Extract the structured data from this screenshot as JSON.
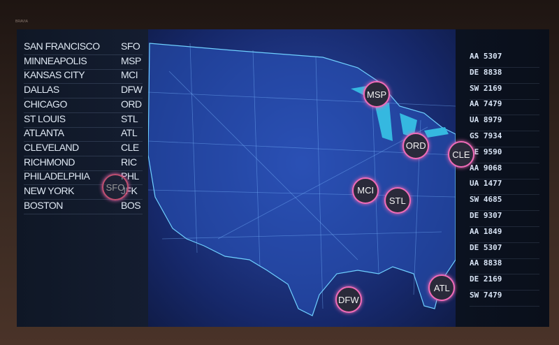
{
  "brand": "BRAVIA",
  "airports": [
    {
      "city": "SAN FRANCISCO",
      "code": "SFO"
    },
    {
      "city": "MINNEAPOLIS",
      "code": "MSP"
    },
    {
      "city": "KANSAS CITY",
      "code": "MCI"
    },
    {
      "city": "DALLAS",
      "code": "DFW"
    },
    {
      "city": "CHICAGO",
      "code": "ORD"
    },
    {
      "city": "ST LOUIS",
      "code": "STL"
    },
    {
      "city": "ATLANTA",
      "code": "ATL"
    },
    {
      "city": "CLEVELAND",
      "code": "CLE"
    },
    {
      "city": "RICHMOND",
      "code": "RIC"
    },
    {
      "city": "PHILADELPHIA",
      "code": "PHL"
    },
    {
      "city": "NEW YORK",
      "code": "JFK"
    },
    {
      "city": "BOSTON",
      "code": "BOS"
    }
  ],
  "flights": [
    "AA 5307",
    "DE 8838",
    "SW 2169",
    "AA 7479",
    "UA 8979",
    "GS 7934",
    "DE 9590",
    "AA 9068",
    "UA 1477",
    "SW 4685",
    "DE 9307",
    "AA 1849",
    "DE 5307",
    "AA 8838",
    "DE 2169",
    "SW 7479"
  ],
  "markers": [
    {
      "code": "SFO",
      "lat": 37.6,
      "lon": -122.4
    },
    {
      "code": "MSP",
      "lat": 44.9,
      "lon": -93.2
    },
    {
      "code": "ORD",
      "lat": 41.9,
      "lon": -87.9
    },
    {
      "code": "CLE",
      "lat": 41.4,
      "lon": -81.8
    },
    {
      "code": "STL",
      "lat": 38.7,
      "lon": -90.4
    },
    {
      "code": "MCI",
      "lat": 39.3,
      "lon": -94.7
    },
    {
      "code": "DFW",
      "lat": 32.9,
      "lon": -97.0
    },
    {
      "code": "ATL",
      "lat": 33.6,
      "lon": -84.4
    }
  ],
  "colors": {
    "marker_ring": "#f06bb8",
    "map_bg": "#1f3a8f",
    "land": "#2a56c0"
  }
}
